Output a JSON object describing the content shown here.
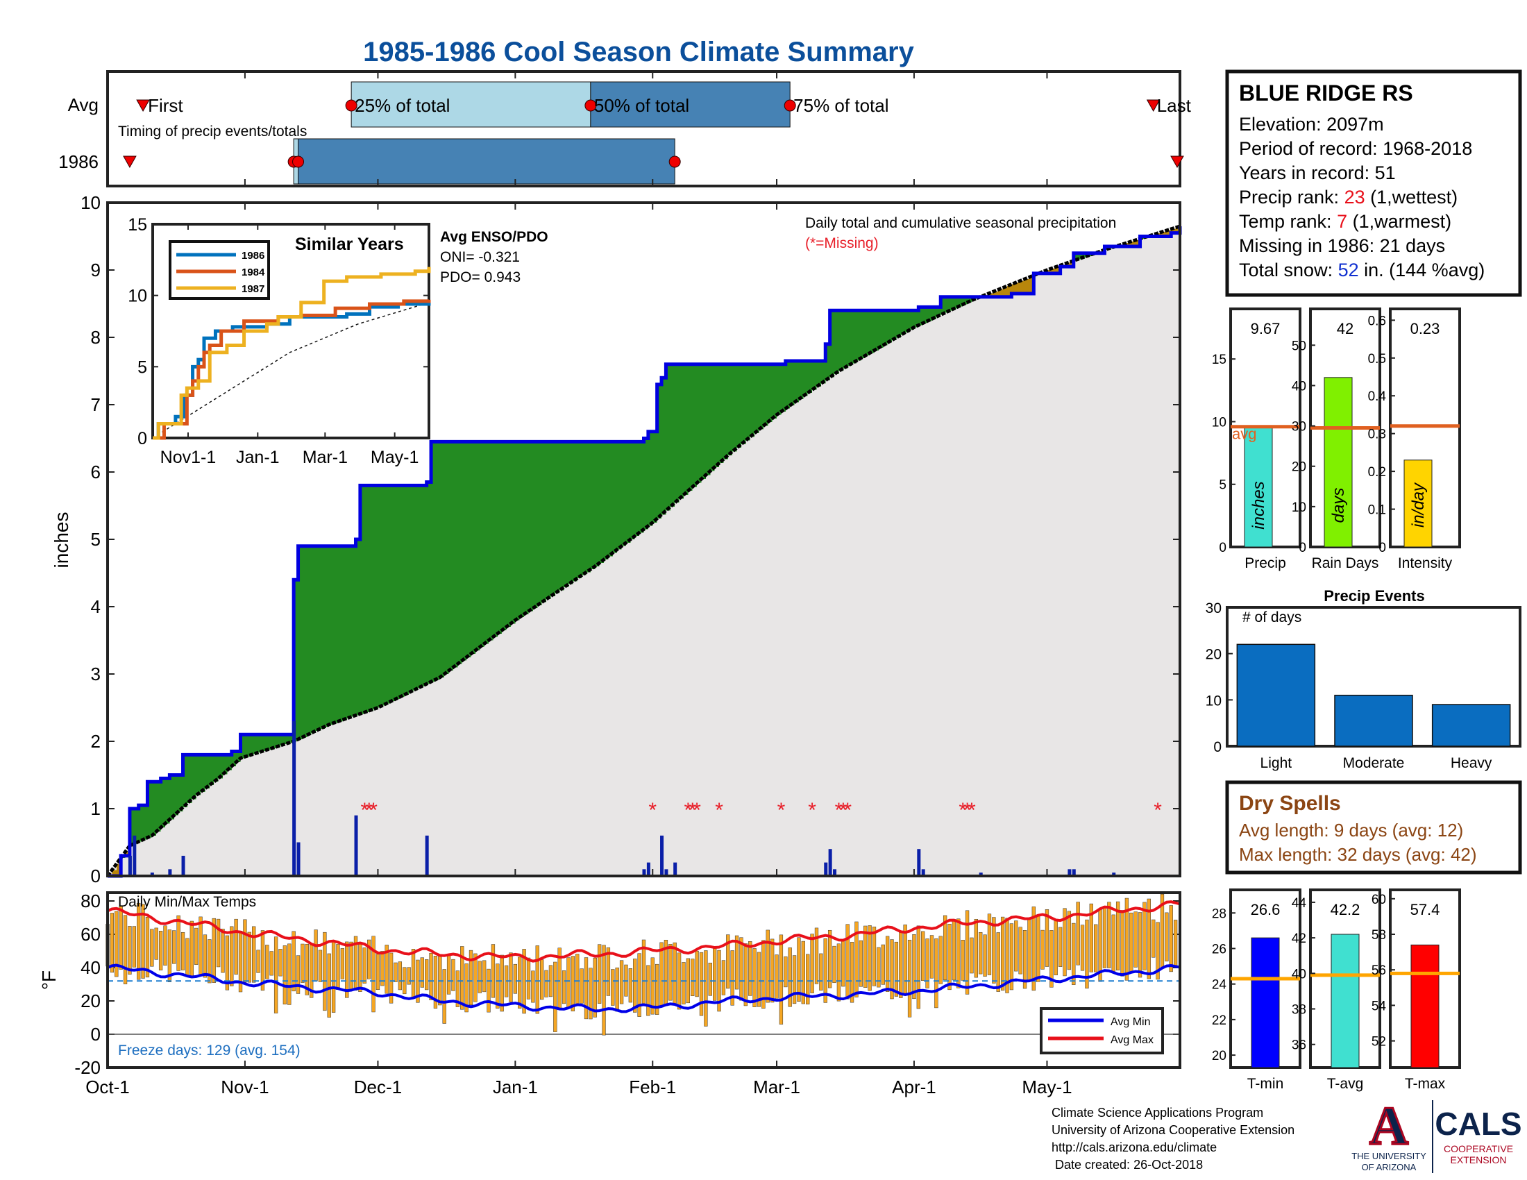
{
  "title": "1985-1986 Cool Season Climate Summary",
  "colors": {
    "title": "#0b4f9b",
    "cum_1986": "#0000e0",
    "cum_avg": "#000000",
    "surplus": "#238b22",
    "gray_fill": "#e8e6e6",
    "deficit": "#b8860b",
    "daily_bar": "#0a1fa8",
    "missing": "#e8202a",
    "temp_bar": "#f5a623",
    "avg_min": "#0000e8",
    "avg_max": "#e8101a",
    "freeze_line": "#1e7fd0",
    "avg_line": "#e06020",
    "precip_bar": "#40e0d0",
    "raindays_bar": "#80f000",
    "intensity_bar": "#ffd400",
    "events_bar": "#0a6dc0",
    "tmin_bar": "#0000ff",
    "tavg_bar": "#40e0d0",
    "tmax_bar": "#ff0000",
    "dry_text": "#8b4513",
    "rank_red": "#e8101a",
    "snow_blue": "#1030d0"
  },
  "timing": {
    "caption": "Timing of precip events/totals",
    "rows": [
      "Avg",
      "1986"
    ],
    "labels": {
      "first": "First",
      "p25": "25% of total",
      "p50": "50% of total",
      "p75": "75% of total",
      "last": "Last"
    },
    "avg_days": {
      "first": 8,
      "p25": 55,
      "p50": 109,
      "p75": 154,
      "last": 236
    },
    "y1986_days": {
      "first": 5,
      "p25": 42,
      "p50": 43,
      "p75": 128,
      "last": 242
    },
    "colors": {
      "q1": "#add8e6",
      "q2": "#4682b4"
    }
  },
  "station": {
    "name": "BLUE RIDGE RS",
    "elevation": "Elevation: 2097m",
    "period": "Period of record: 1968-2018",
    "years": "Years in record: 51",
    "precip_rank_label": "Precip rank: ",
    "precip_rank": "23",
    "precip_rank_note": " (1,wettest)",
    "temp_rank_label": "Temp rank: ",
    "temp_rank": "7",
    "temp_rank_note": " (1,warmest)",
    "missing": "Missing in 1986: 21 days",
    "snow_label": "Total snow: ",
    "snow_value": "52",
    "snow_note": " in. (144 %avg)"
  },
  "chart_data": [
    {
      "id": "cumulative-precip",
      "type": "area",
      "ylabel": "inches",
      "ylim": [
        0,
        10
      ],
      "yticks": [
        0,
        1,
        2,
        3,
        4,
        5,
        6,
        7,
        8,
        9,
        10
      ],
      "xticks": [
        "Oct-1",
        "Nov-1",
        "Dec-1",
        "Jan-1",
        "Feb-1",
        "Mar-1",
        "Apr-1",
        "May-1"
      ],
      "xtick_days": [
        0,
        31,
        61,
        92,
        123,
        151,
        182,
        212
      ],
      "x_days_total": 242,
      "annotation": "Daily total and cumulative seasonal precipitation",
      "missing_note": "(*=Missing)",
      "cum_1986": [
        [
          0,
          0
        ],
        [
          3,
          0.3
        ],
        [
          5,
          1.0
        ],
        [
          7,
          1.05
        ],
        [
          9,
          1.4
        ],
        [
          12,
          1.45
        ],
        [
          14,
          1.5
        ],
        [
          17,
          1.8
        ],
        [
          28,
          1.85
        ],
        [
          30,
          2.1
        ],
        [
          41,
          2.1
        ],
        [
          42,
          4.4
        ],
        [
          43,
          4.9
        ],
        [
          56,
          5.0
        ],
        [
          57,
          5.8
        ],
        [
          72,
          5.85
        ],
        [
          73,
          6.45
        ],
        [
          121,
          6.5
        ],
        [
          122,
          6.6
        ],
        [
          124,
          7.3
        ],
        [
          125,
          7.4
        ],
        [
          126,
          7.6
        ],
        [
          153,
          7.65
        ],
        [
          162,
          7.9
        ],
        [
          163,
          8.4
        ],
        [
          183,
          8.45
        ],
        [
          188,
          8.6
        ],
        [
          204,
          8.65
        ],
        [
          209,
          8.95
        ],
        [
          215,
          9.05
        ],
        [
          218,
          9.25
        ],
        [
          225,
          9.35
        ],
        [
          232,
          9.35
        ],
        [
          233,
          9.5
        ],
        [
          240,
          9.55
        ],
        [
          242,
          9.65
        ]
      ],
      "cum_avg": [
        [
          0,
          0
        ],
        [
          5,
          0.45
        ],
        [
          10,
          0.6
        ],
        [
          15,
          0.9
        ],
        [
          20,
          1.2
        ],
        [
          25,
          1.45
        ],
        [
          30,
          1.75
        ],
        [
          42,
          2.0
        ],
        [
          50,
          2.25
        ],
        [
          61,
          2.5
        ],
        [
          75,
          2.95
        ],
        [
          92,
          3.8
        ],
        [
          110,
          4.6
        ],
        [
          123,
          5.25
        ],
        [
          140,
          6.25
        ],
        [
          151,
          6.85
        ],
        [
          165,
          7.5
        ],
        [
          182,
          8.15
        ],
        [
          195,
          8.55
        ],
        [
          212,
          9.0
        ],
        [
          225,
          9.3
        ],
        [
          242,
          9.65
        ]
      ],
      "daily": [
        [
          5,
          0.3
        ],
        [
          6,
          0.6
        ],
        [
          10,
          0.05
        ],
        [
          14,
          0.1
        ],
        [
          17,
          0.3
        ],
        [
          42,
          2.3
        ],
        [
          43,
          0.5
        ],
        [
          56,
          0.9
        ],
        [
          72,
          0.6
        ],
        [
          121,
          0.1
        ],
        [
          122,
          0.2
        ],
        [
          125,
          0.6
        ],
        [
          126,
          0.1
        ],
        [
          128,
          0.2
        ],
        [
          162,
          0.2
        ],
        [
          163,
          0.4
        ],
        [
          164,
          0.1
        ],
        [
          183,
          0.4
        ],
        [
          184,
          0.1
        ],
        [
          197,
          0.05
        ],
        [
          217,
          0.1
        ],
        [
          218,
          0.1
        ],
        [
          227,
          0.05
        ]
      ],
      "missing_days": [
        58,
        59,
        60,
        123,
        131,
        132,
        133,
        138,
        152,
        159,
        165,
        166,
        167,
        193,
        194,
        195,
        237
      ]
    },
    {
      "id": "similar-years",
      "type": "line",
      "title": "Similar Years",
      "ylim": [
        0,
        15
      ],
      "yticks": [
        0,
        5,
        10,
        15
      ],
      "xticks": [
        "Nov1-1",
        "Jan-1",
        "Mar-1",
        "May-1"
      ],
      "xtick_days": [
        31,
        92,
        151,
        212
      ],
      "series": [
        {
          "name": "1986",
          "color": "#0072bd",
          "points": [
            [
              0,
              0
            ],
            [
              5,
              1
            ],
            [
              20,
              1.5
            ],
            [
              28,
              3
            ],
            [
              35,
              5
            ],
            [
              40,
              5.5
            ],
            [
              45,
              7
            ],
            [
              55,
              7.5
            ],
            [
              70,
              7.8
            ],
            [
              100,
              8.0
            ],
            [
              120,
              8.5
            ],
            [
              150,
              8.5
            ],
            [
              170,
              8.7
            ],
            [
              190,
              9.2
            ],
            [
              215,
              9.4
            ],
            [
              242,
              9.6
            ]
          ]
        },
        {
          "name": "1984",
          "color": "#d95319",
          "points": [
            [
              0,
              0
            ],
            [
              10,
              1
            ],
            [
              25,
              1
            ],
            [
              30,
              3
            ],
            [
              35,
              4
            ],
            [
              40,
              5
            ],
            [
              45,
              6
            ],
            [
              50,
              6.5
            ],
            [
              60,
              7.5
            ],
            [
              80,
              8.2
            ],
            [
              110,
              8.5
            ],
            [
              130,
              8.6
            ],
            [
              160,
              9.1
            ],
            [
              190,
              9.4
            ],
            [
              220,
              9.6
            ],
            [
              242,
              9.7
            ]
          ]
        },
        {
          "name": "1987",
          "color": "#edb120",
          "points": [
            [
              0,
              0
            ],
            [
              5,
              1
            ],
            [
              20,
              1
            ],
            [
              25,
              3
            ],
            [
              30,
              3.5
            ],
            [
              40,
              4
            ],
            [
              50,
              6
            ],
            [
              65,
              6.5
            ],
            [
              80,
              7.5
            ],
            [
              100,
              8.0
            ],
            [
              110,
              8.5
            ],
            [
              130,
              9.5
            ],
            [
              150,
              11.0
            ],
            [
              170,
              11.3
            ],
            [
              200,
              11.5
            ],
            [
              230,
              11.7
            ],
            [
              242,
              12.0
            ]
          ]
        }
      ],
      "avg_points": [
        [
          0,
          0
        ],
        [
          60,
          3
        ],
        [
          120,
          6
        ],
        [
          180,
          8
        ],
        [
          242,
          9.5
        ]
      ]
    },
    {
      "id": "daily-temps",
      "type": "bar",
      "annotation": "Daily Min/Max Temps",
      "ylabel": "°F",
      "ylim": [
        -20,
        85
      ],
      "yticks": [
        -20,
        0,
        20,
        40,
        60,
        80
      ],
      "freeze_line": 32,
      "freeze_note": "Freeze days: 129 (avg. 154)",
      "legend": [
        "Avg Min",
        "Avg Max"
      ],
      "avg_min": [
        [
          0,
          40
        ],
        [
          15,
          36
        ],
        [
          31,
          31
        ],
        [
          50,
          27
        ],
        [
          61,
          25
        ],
        [
          75,
          20
        ],
        [
          92,
          17
        ],
        [
          110,
          15
        ],
        [
          123,
          16
        ],
        [
          140,
          20
        ],
        [
          151,
          22
        ],
        [
          170,
          24
        ],
        [
          182,
          26
        ],
        [
          200,
          30
        ],
        [
          212,
          33
        ],
        [
          230,
          37
        ],
        [
          242,
          40
        ]
      ],
      "avg_max": [
        [
          0,
          74
        ],
        [
          15,
          68
        ],
        [
          31,
          61
        ],
        [
          50,
          55
        ],
        [
          61,
          51
        ],
        [
          75,
          48
        ],
        [
          92,
          46
        ],
        [
          110,
          48
        ],
        [
          123,
          50
        ],
        [
          140,
          53
        ],
        [
          151,
          56
        ],
        [
          170,
          60
        ],
        [
          182,
          64
        ],
        [
          200,
          68
        ],
        [
          212,
          70
        ],
        [
          230,
          75
        ],
        [
          242,
          78
        ]
      ]
    },
    {
      "id": "season-totals",
      "type": "bar",
      "panels": [
        {
          "label": "Precip",
          "unit": "inches",
          "value": 9.67,
          "value_text": "9.67",
          "avg": 9.6,
          "avg_label": "avg",
          "ylim": [
            0,
            19
          ],
          "yticks": [
            0,
            5,
            10,
            15
          ]
        },
        {
          "label": "Rain Days",
          "unit": "days",
          "value": 42,
          "value_text": "42",
          "avg": 29.5,
          "ylim": [
            0,
            59
          ],
          "yticks": [
            0,
            10,
            20,
            30,
            40,
            50
          ]
        },
        {
          "label": "Intensity",
          "unit": "in/day",
          "value": 0.23,
          "value_text": "0.23",
          "avg": 0.32,
          "ylim": [
            0,
            0.63
          ],
          "yticks": [
            0,
            0.1,
            0.2,
            0.3,
            0.4,
            0.5,
            0.6
          ]
        }
      ]
    },
    {
      "id": "precip-events",
      "type": "bar",
      "title": "Precip Events",
      "ylabel": "# of days",
      "categories": [
        "Light",
        "Moderate",
        "Heavy"
      ],
      "values": [
        22,
        11,
        9
      ],
      "ylim": [
        0,
        30
      ],
      "yticks": [
        0,
        10,
        20,
        30
      ]
    },
    {
      "id": "season-temps",
      "type": "bar",
      "panels": [
        {
          "label": "T-min",
          "value": 26.6,
          "value_text": "26.6",
          "avg": 24.3,
          "ylim": [
            19.3,
            29.3
          ],
          "yticks": [
            20,
            22,
            24,
            26,
            28
          ]
        },
        {
          "label": "T-avg",
          "value": 42.2,
          "value_text": "42.2",
          "avg": 39.9,
          "ylim": [
            34.7,
            44.7
          ],
          "yticks": [
            36,
            38,
            40,
            42,
            44
          ]
        },
        {
          "label": "T-max",
          "value": 57.4,
          "value_text": "57.4",
          "avg": 55.8,
          "ylim": [
            50.5,
            60.5
          ],
          "yticks": [
            52,
            54,
            56,
            58,
            60
          ]
        }
      ]
    }
  ],
  "dry_spells": {
    "title": "Dry Spells",
    "avg_length": "Avg length: 9 days (avg: 12)",
    "max_length": "Max length: 32 days (avg: 42)"
  },
  "footer": {
    "lines": [
      "Climate Science Applications Program",
      "University of Arizona Cooperative Extension",
      "http://cals.arizona.edu/climate",
      " Date created: 26-Oct-2018"
    ]
  },
  "logos": {
    "ua_letter": "A",
    "ua_text": [
      "THE UNIVERSITY",
      "OF ARIZONA"
    ],
    "cals_text": "CALS",
    "cals_sub": [
      "COOPERATIVE",
      "EXTENSION"
    ]
  }
}
